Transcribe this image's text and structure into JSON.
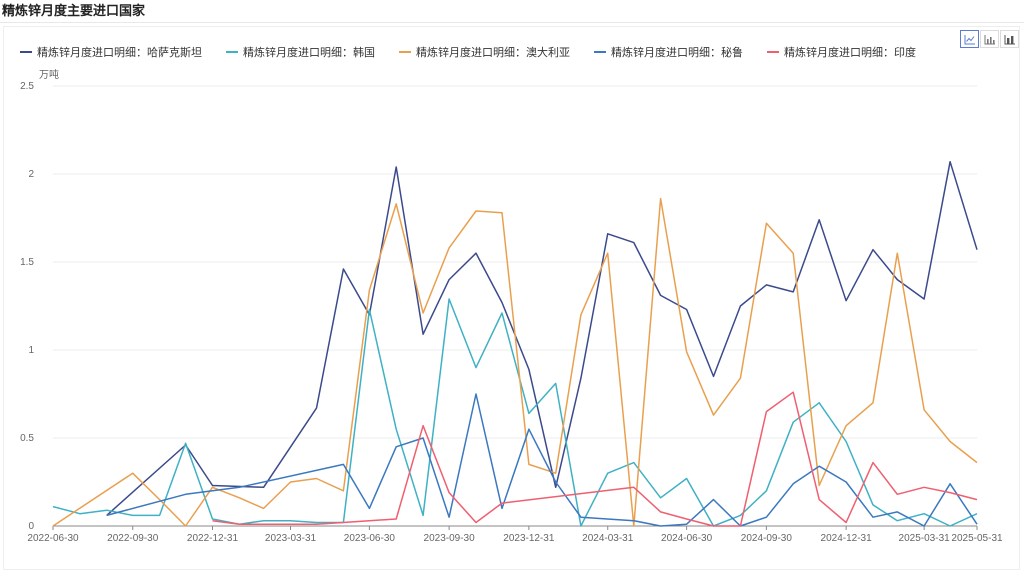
{
  "page": {
    "title": "精炼锌月度主要进口国家"
  },
  "toolbar": {
    "buttons": [
      {
        "name": "line-chart-icon",
        "active": true
      },
      {
        "name": "bar-chart-icon",
        "active": false
      },
      {
        "name": "stacked-bar-chart-icon",
        "active": false
      }
    ]
  },
  "chart_data": {
    "type": "line",
    "title": "精炼锌月度主要进口国家",
    "ylabel": "万吨",
    "ylim": [
      0,
      2.5
    ],
    "yticks": [
      0,
      0.5,
      1,
      1.5,
      2,
      2.5
    ],
    "ytick_labels": [
      "0",
      "0.5",
      "1",
      "1.5",
      "2",
      "2.5"
    ],
    "xlim": [
      "2022-06-30",
      "2025-05-31"
    ],
    "xtick_labels": [
      "2022-06-30",
      "2022-09-30",
      "2022-12-31",
      "2023-03-31",
      "2023-06-30",
      "2023-09-30",
      "2023-12-31",
      "2024-03-31",
      "2024-06-30",
      "2024-09-30",
      "2024-12-31",
      "2025-03-31",
      "2025-05-31"
    ],
    "legend_position": "top-left",
    "grid": "horizontal",
    "series": [
      {
        "name": "精炼锌月度进口明细：哈萨克斯坦",
        "color": "#3b4a8c",
        "points": [
          [
            "2022-08-31",
            0.06
          ],
          [
            "2022-11-30",
            0.46
          ],
          [
            "2022-12-31",
            0.23
          ],
          [
            "2023-02-28",
            0.22
          ],
          [
            "2023-04-30",
            0.67
          ],
          [
            "2023-05-31",
            1.46
          ],
          [
            "2023-06-30",
            1.2
          ],
          [
            "2023-07-31",
            2.04
          ],
          [
            "2023-08-31",
            1.09
          ],
          [
            "2023-09-30",
            1.4
          ],
          [
            "2023-10-31",
            1.55
          ],
          [
            "2023-11-30",
            1.27
          ],
          [
            "2023-12-31",
            0.89
          ],
          [
            "2024-01-31",
            0.22
          ],
          [
            "2024-02-29",
            0.84
          ],
          [
            "2024-03-31",
            1.66
          ],
          [
            "2024-04-30",
            1.61
          ],
          [
            "2024-05-31",
            1.31
          ],
          [
            "2024-06-30",
            1.23
          ],
          [
            "2024-07-31",
            0.85
          ],
          [
            "2024-08-31",
            1.25
          ],
          [
            "2024-09-30",
            1.37
          ],
          [
            "2024-10-31",
            1.33
          ],
          [
            "2024-11-30",
            1.74
          ],
          [
            "2024-12-31",
            1.28
          ],
          [
            "2025-01-31",
            1.57
          ],
          [
            "2025-02-28",
            1.4
          ],
          [
            "2025-03-31",
            1.29
          ],
          [
            "2025-04-30",
            2.07
          ],
          [
            "2025-05-31",
            1.57
          ]
        ]
      },
      {
        "name": "精炼锌月度进口明细：韩国",
        "color": "#3fb1c4",
        "points": [
          [
            "2022-06-30",
            0.11
          ],
          [
            "2022-07-31",
            0.07
          ],
          [
            "2022-08-31",
            0.09
          ],
          [
            "2022-09-30",
            0.06
          ],
          [
            "2022-10-31",
            0.06
          ],
          [
            "2022-11-30",
            0.47
          ],
          [
            "2022-12-31",
            0.04
          ],
          [
            "2023-01-31",
            0.01
          ],
          [
            "2023-02-28",
            0.03
          ],
          [
            "2023-03-31",
            0.03
          ],
          [
            "2023-04-30",
            0.02
          ],
          [
            "2023-05-31",
            0.02
          ],
          [
            "2023-06-30",
            1.23
          ],
          [
            "2023-07-31",
            0.55
          ],
          [
            "2023-08-31",
            0.06
          ],
          [
            "2023-09-30",
            1.29
          ],
          [
            "2023-10-31",
            0.9
          ],
          [
            "2023-11-30",
            1.21
          ],
          [
            "2023-12-31",
            0.64
          ],
          [
            "2024-01-31",
            0.81
          ],
          [
            "2024-02-29",
            0.0
          ],
          [
            "2024-03-31",
            0.3
          ],
          [
            "2024-04-30",
            0.36
          ],
          [
            "2024-05-31",
            0.16
          ],
          [
            "2024-06-30",
            0.27
          ],
          [
            "2024-07-31",
            0.0
          ],
          [
            "2024-08-31",
            0.06
          ],
          [
            "2024-09-30",
            0.2
          ],
          [
            "2024-10-31",
            0.59
          ],
          [
            "2024-11-30",
            0.7
          ],
          [
            "2024-12-31",
            0.48
          ],
          [
            "2025-01-31",
            0.12
          ],
          [
            "2025-02-28",
            0.03
          ],
          [
            "2025-03-31",
            0.07
          ],
          [
            "2025-04-30",
            0.0
          ],
          [
            "2025-05-31",
            0.07
          ]
        ]
      },
      {
        "name": "精炼锌月度进口明细：澳大利亚",
        "color": "#e9a04e",
        "points": [
          [
            "2022-06-30",
            0.0
          ],
          [
            "2022-09-30",
            0.3
          ],
          [
            "2022-10-31",
            0.15
          ],
          [
            "2022-11-30",
            0.0
          ],
          [
            "2022-12-31",
            0.22
          ],
          [
            "2023-01-31",
            0.16
          ],
          [
            "2023-02-28",
            0.1
          ],
          [
            "2023-03-31",
            0.25
          ],
          [
            "2023-04-30",
            0.27
          ],
          [
            "2023-05-31",
            0.2
          ],
          [
            "2023-06-30",
            1.34
          ],
          [
            "2023-07-31",
            1.83
          ],
          [
            "2023-08-31",
            1.21
          ],
          [
            "2023-09-30",
            1.58
          ],
          [
            "2023-10-31",
            1.79
          ],
          [
            "2023-11-30",
            1.78
          ],
          [
            "2023-12-31",
            0.35
          ],
          [
            "2024-01-31",
            0.3
          ],
          [
            "2024-02-29",
            1.2
          ],
          [
            "2024-03-31",
            1.55
          ],
          [
            "2024-04-30",
            0.0
          ],
          [
            "2024-05-31",
            1.86
          ],
          [
            "2024-06-30",
            0.99
          ],
          [
            "2024-07-31",
            0.63
          ],
          [
            "2024-08-31",
            0.84
          ],
          [
            "2024-09-30",
            1.72
          ],
          [
            "2024-10-31",
            1.55
          ],
          [
            "2024-11-30",
            0.23
          ],
          [
            "2024-12-31",
            0.57
          ],
          [
            "2025-01-31",
            0.7
          ],
          [
            "2025-02-28",
            1.55
          ],
          [
            "2025-03-31",
            0.66
          ],
          [
            "2025-04-30",
            0.48
          ],
          [
            "2025-05-31",
            0.36
          ]
        ]
      },
      {
        "name": "精炼锌月度进口明细：秘鲁",
        "color": "#3b78c0",
        "points": [
          [
            "2022-08-31",
            0.06
          ],
          [
            "2022-11-30",
            0.18
          ],
          [
            "2023-01-31",
            0.22
          ],
          [
            "2023-05-31",
            0.35
          ],
          [
            "2023-06-30",
            0.1
          ],
          [
            "2023-07-31",
            0.45
          ],
          [
            "2023-08-31",
            0.5
          ],
          [
            "2023-09-30",
            0.05
          ],
          [
            "2023-10-31",
            0.75
          ],
          [
            "2023-11-30",
            0.1
          ],
          [
            "2023-12-31",
            0.55
          ],
          [
            "2024-01-31",
            0.25
          ],
          [
            "2024-02-29",
            0.05
          ],
          [
            "2024-04-30",
            0.03
          ],
          [
            "2024-05-31",
            0.0
          ],
          [
            "2024-06-30",
            0.01
          ],
          [
            "2024-07-31",
            0.15
          ],
          [
            "2024-08-31",
            0.0
          ],
          [
            "2024-09-30",
            0.05
          ],
          [
            "2024-10-31",
            0.24
          ],
          [
            "2024-11-30",
            0.34
          ],
          [
            "2024-12-31",
            0.25
          ],
          [
            "2025-01-31",
            0.05
          ],
          [
            "2025-02-28",
            0.08
          ],
          [
            "2025-03-31",
            0.0
          ],
          [
            "2025-04-30",
            0.24
          ],
          [
            "2025-05-31",
            0.01
          ]
        ]
      },
      {
        "name": "精炼锌月度进口明细：印度",
        "color": "#ef5f70",
        "points": [
          [
            "2022-12-31",
            0.03
          ],
          [
            "2023-01-31",
            0.01
          ],
          [
            "2023-04-30",
            0.01
          ],
          [
            "2023-06-30",
            0.03
          ],
          [
            "2023-07-31",
            0.04
          ],
          [
            "2023-08-31",
            0.57
          ],
          [
            "2023-09-30",
            0.19
          ],
          [
            "2023-10-31",
            0.02
          ],
          [
            "2023-11-30",
            0.13
          ],
          [
            "2024-04-30",
            0.22
          ],
          [
            "2024-05-31",
            0.08
          ],
          [
            "2024-06-30",
            0.04
          ],
          [
            "2024-07-31",
            0.0
          ],
          [
            "2024-08-31",
            0.0
          ],
          [
            "2024-09-30",
            0.65
          ],
          [
            "2024-10-31",
            0.76
          ],
          [
            "2024-11-30",
            0.15
          ],
          [
            "2024-12-31",
            0.02
          ],
          [
            "2025-01-31",
            0.36
          ],
          [
            "2025-02-28",
            0.18
          ],
          [
            "2025-03-31",
            0.22
          ],
          [
            "2025-04-30",
            0.19
          ],
          [
            "2025-05-31",
            0.15
          ]
        ]
      }
    ]
  }
}
